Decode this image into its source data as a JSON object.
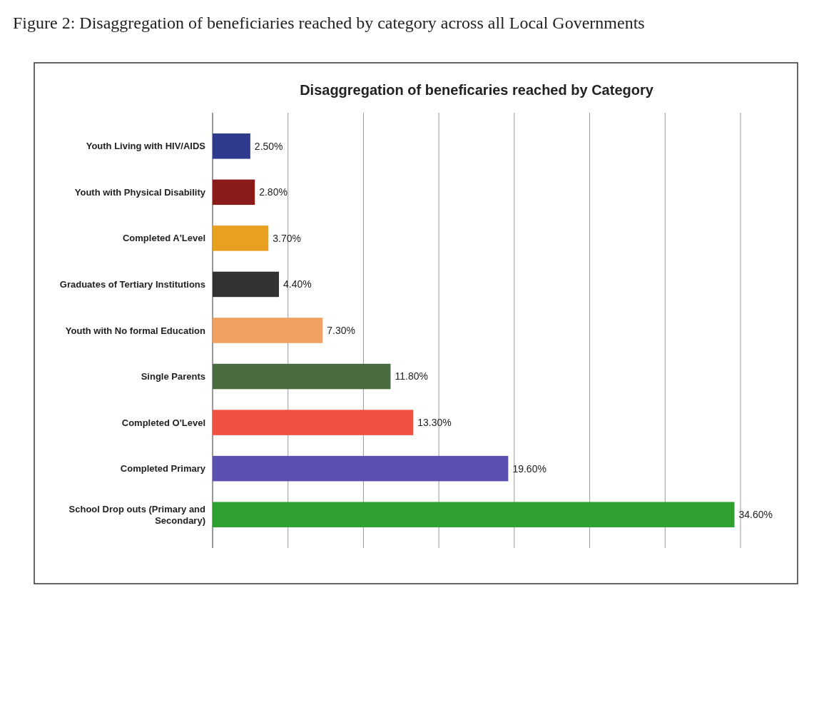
{
  "chart_data": {
    "type": "bar",
    "orientation": "horizontal",
    "title": "Disaggregation of beneficaries reached by Category",
    "annotations": [
      "Figure 2: Disaggregation of beneficiaries reached by category across all Local Governments"
    ],
    "categories": [
      "Youth Living with HIV/AIDS",
      "Youth with Physical Disability",
      "Completed A'Level",
      "Graduates of Tertiary Institutions",
      "Youth with No formal Education",
      "Single Parents",
      "Completed O'Level",
      "Completed Primary",
      "School Drop outs (Primary and Secondary)"
    ],
    "values": [
      2.5,
      2.8,
      3.7,
      4.4,
      7.3,
      11.8,
      13.3,
      19.6,
      34.6
    ],
    "value_labels": [
      "2.50%",
      "2.80%",
      "3.70%",
      "4.40%",
      "7.30%",
      "11.80%",
      "13.30%",
      "19.60%",
      "34.60%"
    ],
    "colors": [
      "#2e3a8c",
      "#8b1a1a",
      "#e8a020",
      "#333333",
      "#f0a060",
      "#4a6a40",
      "#f05040",
      "#5a50b0",
      "#30a030"
    ],
    "xlim": [
      0,
      35
    ],
    "xticks": [
      {
        "value": 0,
        "label": null
      },
      {
        "value": 5,
        "label": null
      },
      {
        "value": 10,
        "label": null
      },
      {
        "value": 15,
        "label": null
      },
      {
        "value": 20,
        "label": null
      },
      {
        "value": 25,
        "label": null
      },
      {
        "value": 30,
        "label": null
      },
      {
        "value": 35,
        "label": null
      }
    ],
    "grid": "x",
    "tick_labels": "y"
  }
}
